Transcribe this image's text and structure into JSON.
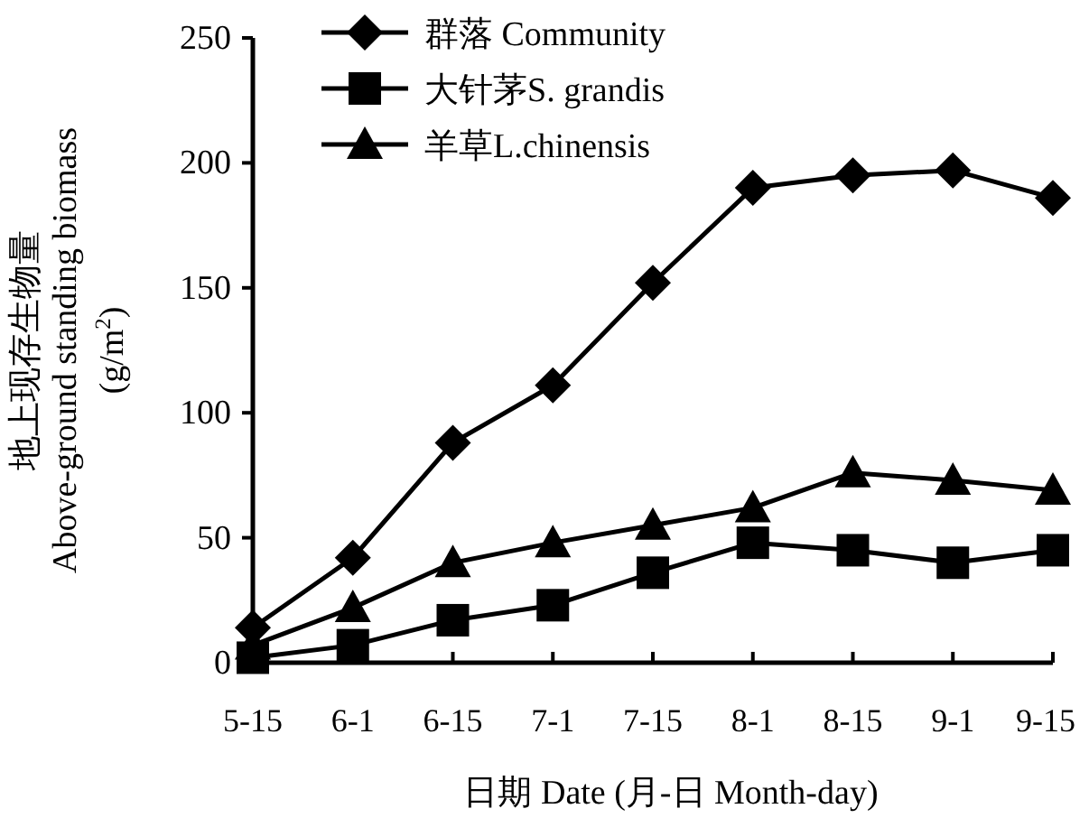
{
  "chart_data": {
    "type": "line",
    "xlabel": "日期 Date (月-日 Month-day)",
    "ylabel": "地上现存生物量\nAbove-ground standing biomass\n(g/m$^{2}$)",
    "categories": [
      "5-15",
      "6-1",
      "6-15",
      "7-1",
      "7-15",
      "8-1",
      "8-15",
      "9-1",
      "9-15"
    ],
    "series": [
      {
        "name": "群落 Community",
        "color": "#000000",
        "marker": "diamond",
        "values": [
          14,
          42,
          88,
          111,
          152,
          190,
          195,
          197,
          186
        ]
      },
      {
        "name": "大针茅S. grandis",
        "color": "#000000",
        "marker": "square",
        "values": [
          2,
          7,
          17,
          23,
          36,
          48,
          45,
          40,
          45
        ]
      },
      {
        "name": "羊草L.chinensis",
        "color": "#000000",
        "marker": "triangle",
        "values": [
          7,
          22,
          40,
          48,
          55,
          62,
          76,
          73,
          69
        ]
      }
    ],
    "ylim": [
      0,
      250
    ],
    "yticks": [
      0,
      50,
      100,
      150,
      200,
      250
    ],
    "legend": "top left",
    "grid": false,
    "line_style": "solid"
  }
}
